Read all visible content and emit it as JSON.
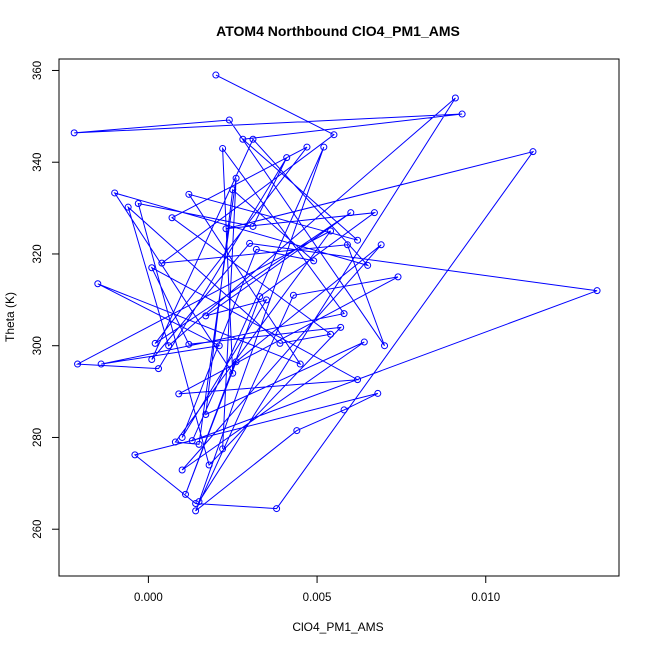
{
  "chart_data": {
    "type": "scatter",
    "title": "ATOM4 Northbound ClO4_PM1_AMS",
    "xlabel": "ClO4_PM1_AMS",
    "ylabel": "Theta (K)",
    "xlim": [
      -0.00265,
      0.01395
    ],
    "ylim": [
      249.8,
      362.5
    ],
    "xticks": [
      0.0,
      0.005,
      0.01
    ],
    "xtick_labels": [
      "0.000",
      "0.005",
      "0.010"
    ],
    "yticks": [
      260,
      280,
      300,
      320,
      340,
      360
    ],
    "ytick_labels": [
      "260",
      "280",
      "300",
      "320",
      "340",
      "360"
    ],
    "grid": false,
    "connected": true,
    "series_color": "#0000ff",
    "x": [
      0.002,
      0.0055,
      0.0004,
      0.0059,
      0.007,
      0.0024,
      -0.0022,
      0.0093,
      0.0028,
      0.0062,
      0.0012,
      0.0045,
      -0.0015,
      0.0021,
      -0.0014,
      0.0058,
      0.0022,
      0.0025,
      -0.001,
      0.0065,
      0.0031,
      0.0001,
      0.003,
      0.0133,
      0.0013,
      0.0052,
      0.0015,
      0.0091,
      0.0006,
      -0.0006,
      0.0039,
      0.0054,
      0.0007,
      0.0047,
      0.0002,
      0.006,
      0.0017,
      0.0035,
      0.001,
      0.0032,
      0.0049,
      0.0025,
      0.0017,
      0.0064,
      0.001,
      0.0069,
      0.0026,
      0.0011,
      0.0033,
      0.0067,
      0.0023,
      0.0114,
      0.0038,
      0.0014,
      -0.0004,
      0.0068,
      0.0058,
      0.0044,
      0.0014,
      0.0043,
      0.0074,
      0.0009,
      0.0062,
      0.0001,
      0.0012,
      0.0057,
      0.0018,
      -0.0003,
      0.0031,
      0.0041,
      0.0003,
      -0.0021,
      0.0054,
      0.0008,
      0.0015,
      0.0026,
      0.0022
    ],
    "y": [
      359.0,
      346.0,
      318.0,
      322.0,
      300.0,
      349.2,
      346.4,
      350.5,
      345.0,
      323.0,
      333.0,
      296.0,
      313.5,
      300.0,
      296.0,
      307.0,
      343.0,
      294.0,
      333.3,
      317.5,
      345.0,
      297.0,
      322.3,
      312.0,
      279.3,
      343.3,
      266.0,
      354.0,
      300.0,
      330.2,
      300.5,
      302.5,
      327.9,
      343.3,
      300.5,
      329.0,
      306.5,
      310.0,
      280.0,
      321.0,
      318.5,
      334.0,
      285.0,
      300.8,
      272.9,
      322.0,
      296.5,
      267.6,
      310.7,
      329.0,
      325.5,
      342.3,
      264.5,
      265.6,
      276.2,
      289.6,
      286.0,
      281.5,
      264.0,
      311.0,
      315.0,
      289.5,
      292.6,
      317.0,
      300.3,
      304.0,
      274.0,
      331.0,
      326.0,
      341.0,
      295.0,
      296.0,
      325.0,
      279.0,
      278.5,
      336.5,
      277.5
    ]
  }
}
